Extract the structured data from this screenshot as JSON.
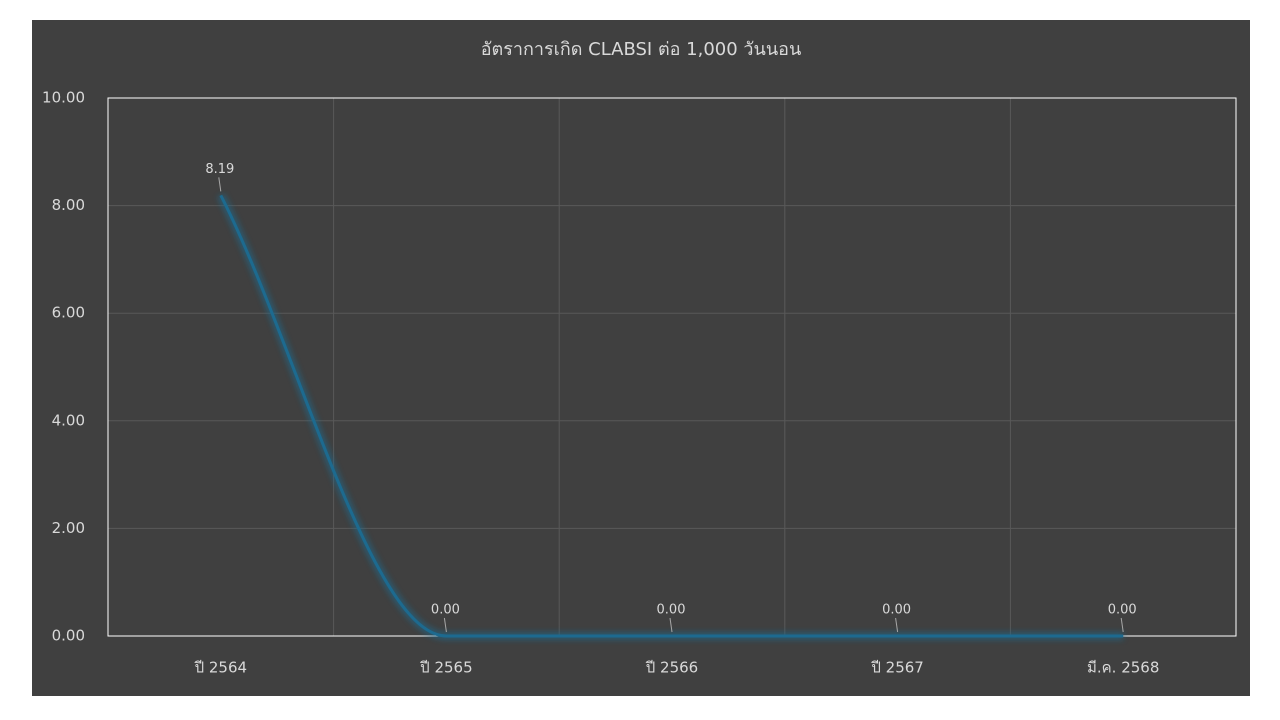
{
  "chart_data": {
    "type": "line",
    "title": "อัตราการเกิด CLABSI ต่อ 1,000 วันนอน",
    "categories": [
      "ปี 2564",
      "ปี 2565",
      "ปี 2566",
      "ปี 2567",
      "มี.ค. 2568"
    ],
    "values": [
      8.19,
      0,
      0,
      0,
      0
    ],
    "value_labels": [
      "8.19",
      "0.00",
      "0.00",
      "0.00",
      "0.00"
    ],
    "color": "#1d6a8f",
    "smooth": true,
    "ylim": [
      0,
      10
    ],
    "yticks": [
      {
        "value": 0,
        "label": "0.00"
      },
      {
        "value": 2,
        "label": "2.00"
      },
      {
        "value": 4,
        "label": "4.00"
      },
      {
        "value": 6,
        "label": "6.00"
      },
      {
        "value": 8,
        "label": "8.00"
      },
      {
        "value": 10,
        "label": "10.00"
      }
    ],
    "grid": true
  }
}
